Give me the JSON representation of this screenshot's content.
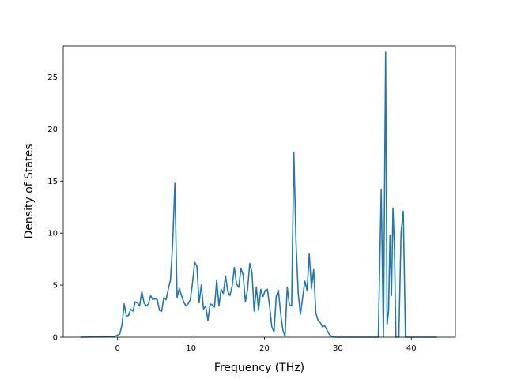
{
  "chart_data": {
    "type": "line",
    "title": "",
    "xlabel": "Frequency (THz)",
    "ylabel": "Density of States",
    "xlim": [
      -7.4,
      46.0
    ],
    "ylim": [
      0,
      28.0
    ],
    "xticks": [
      0,
      10,
      20,
      30,
      40
    ],
    "yticks": [
      0,
      5,
      10,
      15,
      20,
      25
    ],
    "grid": false,
    "legend": "none",
    "colors": {
      "line": "#1f77b4",
      "axes": "#000000",
      "background": "#ffffff"
    },
    "series": [
      {
        "name": "",
        "x": [
          -5.0,
          -0.5,
          0.3,
          0.6,
          0.9,
          1.2,
          1.5,
          1.8,
          2.1,
          2.4,
          2.7,
          3.0,
          3.3,
          3.6,
          3.9,
          4.2,
          4.5,
          4.8,
          5.1,
          5.4,
          5.7,
          6.0,
          6.3,
          6.6,
          6.9,
          7.2,
          7.5,
          7.8,
          8.1,
          8.4,
          8.7,
          9.0,
          9.3,
          9.6,
          9.9,
          10.2,
          10.5,
          10.8,
          11.1,
          11.4,
          11.7,
          12.0,
          12.3,
          12.6,
          12.9,
          13.2,
          13.5,
          13.8,
          14.1,
          14.4,
          14.7,
          15.0,
          15.3,
          15.6,
          15.9,
          16.2,
          16.5,
          16.8,
          17.1,
          17.4,
          17.7,
          18.0,
          18.3,
          18.6,
          18.9,
          19.2,
          19.5,
          19.8,
          20.1,
          20.4,
          20.7,
          21.0,
          21.3,
          21.6,
          21.9,
          22.2,
          22.5,
          22.8,
          23.1,
          23.4,
          23.7,
          24.0,
          24.3,
          24.6,
          24.9,
          25.2,
          25.5,
          25.8,
          26.1,
          26.4,
          26.7,
          27.0,
          27.3,
          27.6,
          27.9,
          28.2,
          28.5,
          28.8,
          29.1,
          29.5,
          30.0,
          35.5,
          35.9,
          36.2,
          36.5,
          36.7,
          36.9,
          37.1,
          37.3,
          37.5,
          37.7,
          37.9,
          38.1,
          38.3,
          38.6,
          38.9,
          39.2,
          39.5,
          39.8,
          40.0,
          43.5
        ],
        "y": [
          0.0,
          0.05,
          0.3,
          1.2,
          3.2,
          2.0,
          2.1,
          2.7,
          2.5,
          3.4,
          3.3,
          3.0,
          4.4,
          3.3,
          3.0,
          3.2,
          4.0,
          3.6,
          3.7,
          3.6,
          2.6,
          2.5,
          3.8,
          3.6,
          4.6,
          5.5,
          9.0,
          14.8,
          3.8,
          4.7,
          4.0,
          3.4,
          3.0,
          3.2,
          3.6,
          5.2,
          7.2,
          6.8,
          3.3,
          5.0,
          2.7,
          3.0,
          1.6,
          3.2,
          3.1,
          2.9,
          5.5,
          3.0,
          4.6,
          4.2,
          5.9,
          4.4,
          4.0,
          4.9,
          6.7,
          5.1,
          4.8,
          6.6,
          6.0,
          3.4,
          4.6,
          7.1,
          6.2,
          2.5,
          4.8,
          2.6,
          4.6,
          3.9,
          4.5,
          4.6,
          3.0,
          1.0,
          0.5,
          3.9,
          4.5,
          2.3,
          0.7,
          0.1,
          4.8,
          3.1,
          3.0,
          17.8,
          9.0,
          4.2,
          2.2,
          3.8,
          5.4,
          4.5,
          8.0,
          4.7,
          6.5,
          2.3,
          1.6,
          1.4,
          1.0,
          1.1,
          0.7,
          0.3,
          0.1,
          0.0,
          0.0,
          0.0,
          14.2,
          0.0,
          27.4,
          1.2,
          2.5,
          9.8,
          4.0,
          12.4,
          8.6,
          0.0,
          0.0,
          0.0,
          10.0,
          12.1,
          0.0,
          0.0,
          0.0,
          0.0,
          0.0
        ]
      }
    ]
  }
}
